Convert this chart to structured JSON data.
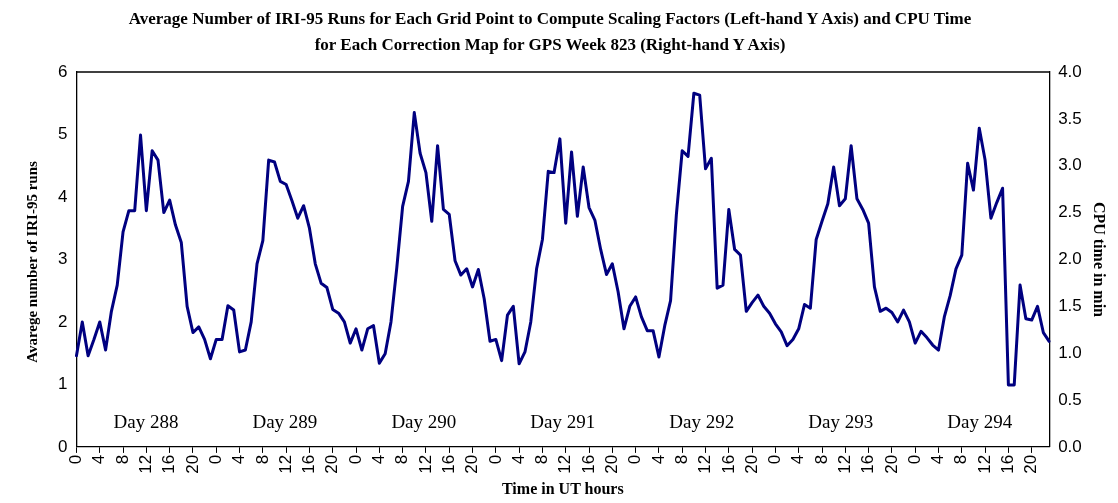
{
  "chart_data": {
    "type": "line",
    "title": "Average Number of IRI-95 Runs for Each Grid Point to Compute Scaling Factors (Left-hand Y Axis)  and CPU Time for Each Correction Map for GPS Week 823 (Right-hand Y Axis)",
    "xlabel": "Time in UT hours",
    "ylabel": "Avarege number of IRI-95 runs",
    "y2label": "CPU time in min",
    "annotations": [
      "Day 288",
      "Day 289",
      "Day 290",
      "Day 291",
      "Day 292",
      "Day 293",
      "Day 294"
    ],
    "categories": [
      "0",
      null,
      null,
      null,
      "4",
      null,
      null,
      null,
      "8",
      null,
      null,
      null,
      "12",
      null,
      null,
      null,
      "16",
      null,
      null,
      null,
      "20",
      null,
      null,
      null,
      "0",
      null,
      null,
      null,
      "4",
      null,
      null,
      null,
      "8",
      null,
      null,
      null,
      "12",
      null,
      null,
      null,
      "16",
      null,
      null,
      null,
      "20",
      null,
      null,
      null,
      "0",
      null,
      null,
      null,
      "4",
      null,
      null,
      null,
      "8",
      null,
      null,
      null,
      "12",
      null,
      null,
      null,
      "16",
      null,
      null,
      null,
      "20",
      null,
      null,
      null,
      "0",
      null,
      null,
      null,
      "4",
      null,
      null,
      null,
      "8",
      null,
      null,
      null,
      "12",
      null,
      null,
      null,
      "16",
      null,
      null,
      null,
      "20",
      null,
      null,
      null,
      "0",
      null,
      null,
      null,
      "4",
      null,
      null,
      null,
      "8",
      null,
      null,
      null,
      "12",
      null,
      null,
      null,
      "16",
      null,
      null,
      null,
      "20",
      null,
      null,
      null,
      "0",
      null,
      null,
      null,
      "4",
      null,
      null,
      null,
      "8",
      null,
      null,
      null,
      "12",
      null,
      null,
      null,
      "16",
      null,
      null,
      null,
      "20",
      null,
      null,
      null,
      "0",
      null,
      null,
      null,
      "4",
      null,
      null,
      null,
      "8",
      null,
      null,
      null,
      "12",
      null,
      null,
      null,
      "16",
      null,
      null,
      null,
      "20",
      null,
      null,
      null
    ],
    "series": [
      {
        "color": "#000080",
        "values": [
          1.46,
          2.0,
          1.46,
          1.72,
          2.0,
          1.55,
          2.17,
          2.59,
          3.44,
          3.78,
          3.78,
          4.99,
          3.78,
          4.74,
          4.59,
          3.75,
          3.95,
          3.55,
          3.27,
          2.25,
          1.83,
          1.92,
          1.72,
          1.41,
          1.72,
          1.72,
          2.26,
          2.19,
          1.52,
          1.55,
          2.0,
          2.93,
          3.3,
          4.59,
          4.56,
          4.25,
          4.2,
          3.94,
          3.66,
          3.86,
          3.5,
          2.93,
          2.62,
          2.55,
          2.2,
          2.14,
          2.0,
          1.66,
          1.89,
          1.55,
          1.89,
          1.94,
          1.34,
          1.49,
          2.0,
          2.87,
          3.85,
          4.25,
          5.35,
          4.7,
          4.39,
          3.61,
          4.82,
          3.8,
          3.72,
          2.98,
          2.75,
          2.85,
          2.56,
          2.84,
          2.37,
          1.69,
          1.72,
          1.38,
          2.11,
          2.25,
          1.33,
          1.52,
          2.0,
          2.85,
          3.32,
          4.41,
          4.39,
          4.93,
          3.58,
          4.72,
          3.69,
          4.48,
          3.83,
          3.63,
          3.16,
          2.76,
          2.93,
          2.48,
          1.89,
          2.25,
          2.4,
          2.08,
          1.86,
          1.86,
          1.44,
          1.94,
          2.34,
          3.72,
          4.74,
          4.65,
          5.66,
          5.63,
          4.45,
          4.62,
          2.54,
          2.59,
          3.8,
          3.16,
          3.07,
          2.17,
          2.31,
          2.43,
          2.25,
          2.14,
          1.97,
          1.84,
          1.62,
          1.72,
          1.89,
          2.28,
          2.22,
          3.32,
          3.61,
          3.89,
          4.48,
          3.86,
          3.97,
          4.82,
          3.97,
          3.8,
          3.58,
          2.56,
          2.17,
          2.22,
          2.15,
          2.0,
          2.19,
          2.0,
          1.66,
          1.85,
          1.75,
          1.63,
          1.55,
          2.08,
          2.42,
          2.85,
          3.07,
          4.54,
          4.11,
          5.1,
          4.59,
          3.66,
          3.91,
          4.14,
          0.99,
          0.99,
          2.59,
          2.05,
          2.03,
          2.25,
          1.83,
          1.69
        ]
      }
    ],
    "ylim": [
      0,
      6
    ],
    "yticks": [
      0,
      1,
      2,
      3,
      4,
      5,
      6
    ],
    "y2lim": [
      0,
      4
    ],
    "y2ticks": [
      {
        "value": 0,
        "label": "0.0"
      },
      {
        "value": 0.5,
        "label": "0.5"
      },
      {
        "value": 1,
        "label": "1.0"
      },
      {
        "value": 1.5,
        "label": "1.5"
      },
      {
        "value": 2,
        "label": "2.0"
      },
      {
        "value": 2.5,
        "label": "2.5"
      },
      {
        "value": 3,
        "label": "3.0"
      },
      {
        "value": 3.5,
        "label": "3.5"
      },
      {
        "value": 4,
        "label": "4.0"
      }
    ],
    "marker": "none",
    "line_style": "solid"
  }
}
